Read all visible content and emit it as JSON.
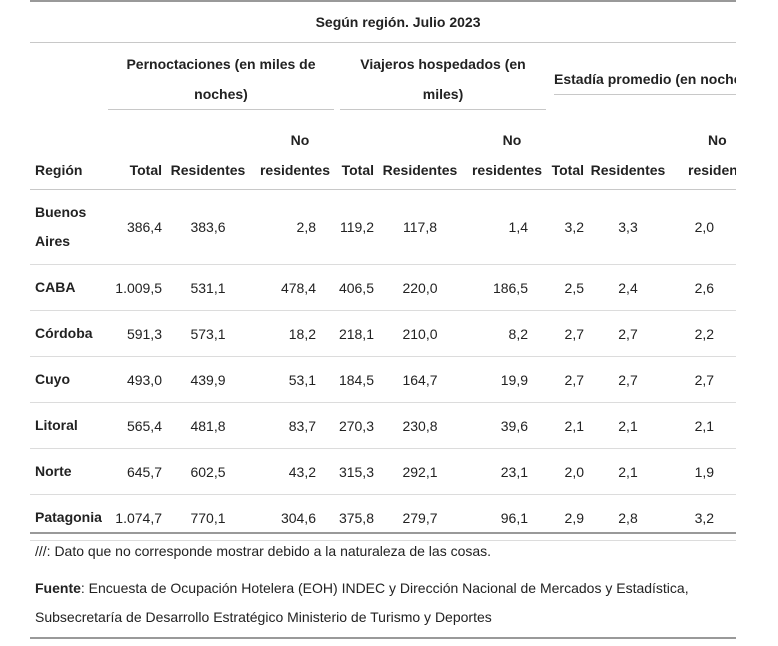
{
  "table": {
    "caption": "Según región. Julio 2023",
    "groups": [
      {
        "label": "Pernoctaciones (en miles de noches)"
      },
      {
        "label": "Viajeros hospedados (en miles)"
      },
      {
        "label": "Estadía promedio (en noches)"
      }
    ],
    "region_header": "Región",
    "subheaders": {
      "total": "Total",
      "residents": "Residentes",
      "nonresidents_1": "No",
      "nonresidents_2": "residentes"
    },
    "rows": [
      {
        "region": "Buenos Aires",
        "v": [
          "386,4",
          "383,6",
          "2,8",
          "119,2",
          "117,8",
          "1,4",
          "3,2",
          "3,3",
          "2,0"
        ]
      },
      {
        "region": "CABA",
        "v": [
          "1.009,5",
          "531,1",
          "478,4",
          "406,5",
          "220,0",
          "186,5",
          "2,5",
          "2,4",
          "2,6"
        ]
      },
      {
        "region": "Córdoba",
        "v": [
          "591,3",
          "573,1",
          "18,2",
          "218,1",
          "210,0",
          "8,2",
          "2,7",
          "2,7",
          "2,2"
        ]
      },
      {
        "region": "Cuyo",
        "v": [
          "493,0",
          "439,9",
          "53,1",
          "184,5",
          "164,7",
          "19,9",
          "2,7",
          "2,7",
          "2,7"
        ]
      },
      {
        "region": "Litoral",
        "v": [
          "565,4",
          "481,8",
          "83,7",
          "270,3",
          "230,8",
          "39,6",
          "2,1",
          "2,1",
          "2,1"
        ]
      },
      {
        "region": "Norte",
        "v": [
          "645,7",
          "602,5",
          "43,2",
          "315,3",
          "292,1",
          "23,1",
          "2,0",
          "2,1",
          "1,9"
        ]
      },
      {
        "region": "Patagonia",
        "v": [
          "1.074,7",
          "770,1",
          "304,6",
          "375,8",
          "279,7",
          "96,1",
          "2,9",
          "2,8",
          "3,2"
        ]
      }
    ]
  },
  "notes": {
    "footnote": "///: Dato que no corresponde mostrar debido a la naturaleza de las cosas.",
    "source_label": "Fuente",
    "source_text_1": ": Encuesta de Ocupación Hotelera (EOH) INDEC y Dirección Nacional de Mercados y Estadística,",
    "source_text_2": "Subsecretaría de Desarrollo Estratégico Ministerio de Turismo y Deportes"
  }
}
